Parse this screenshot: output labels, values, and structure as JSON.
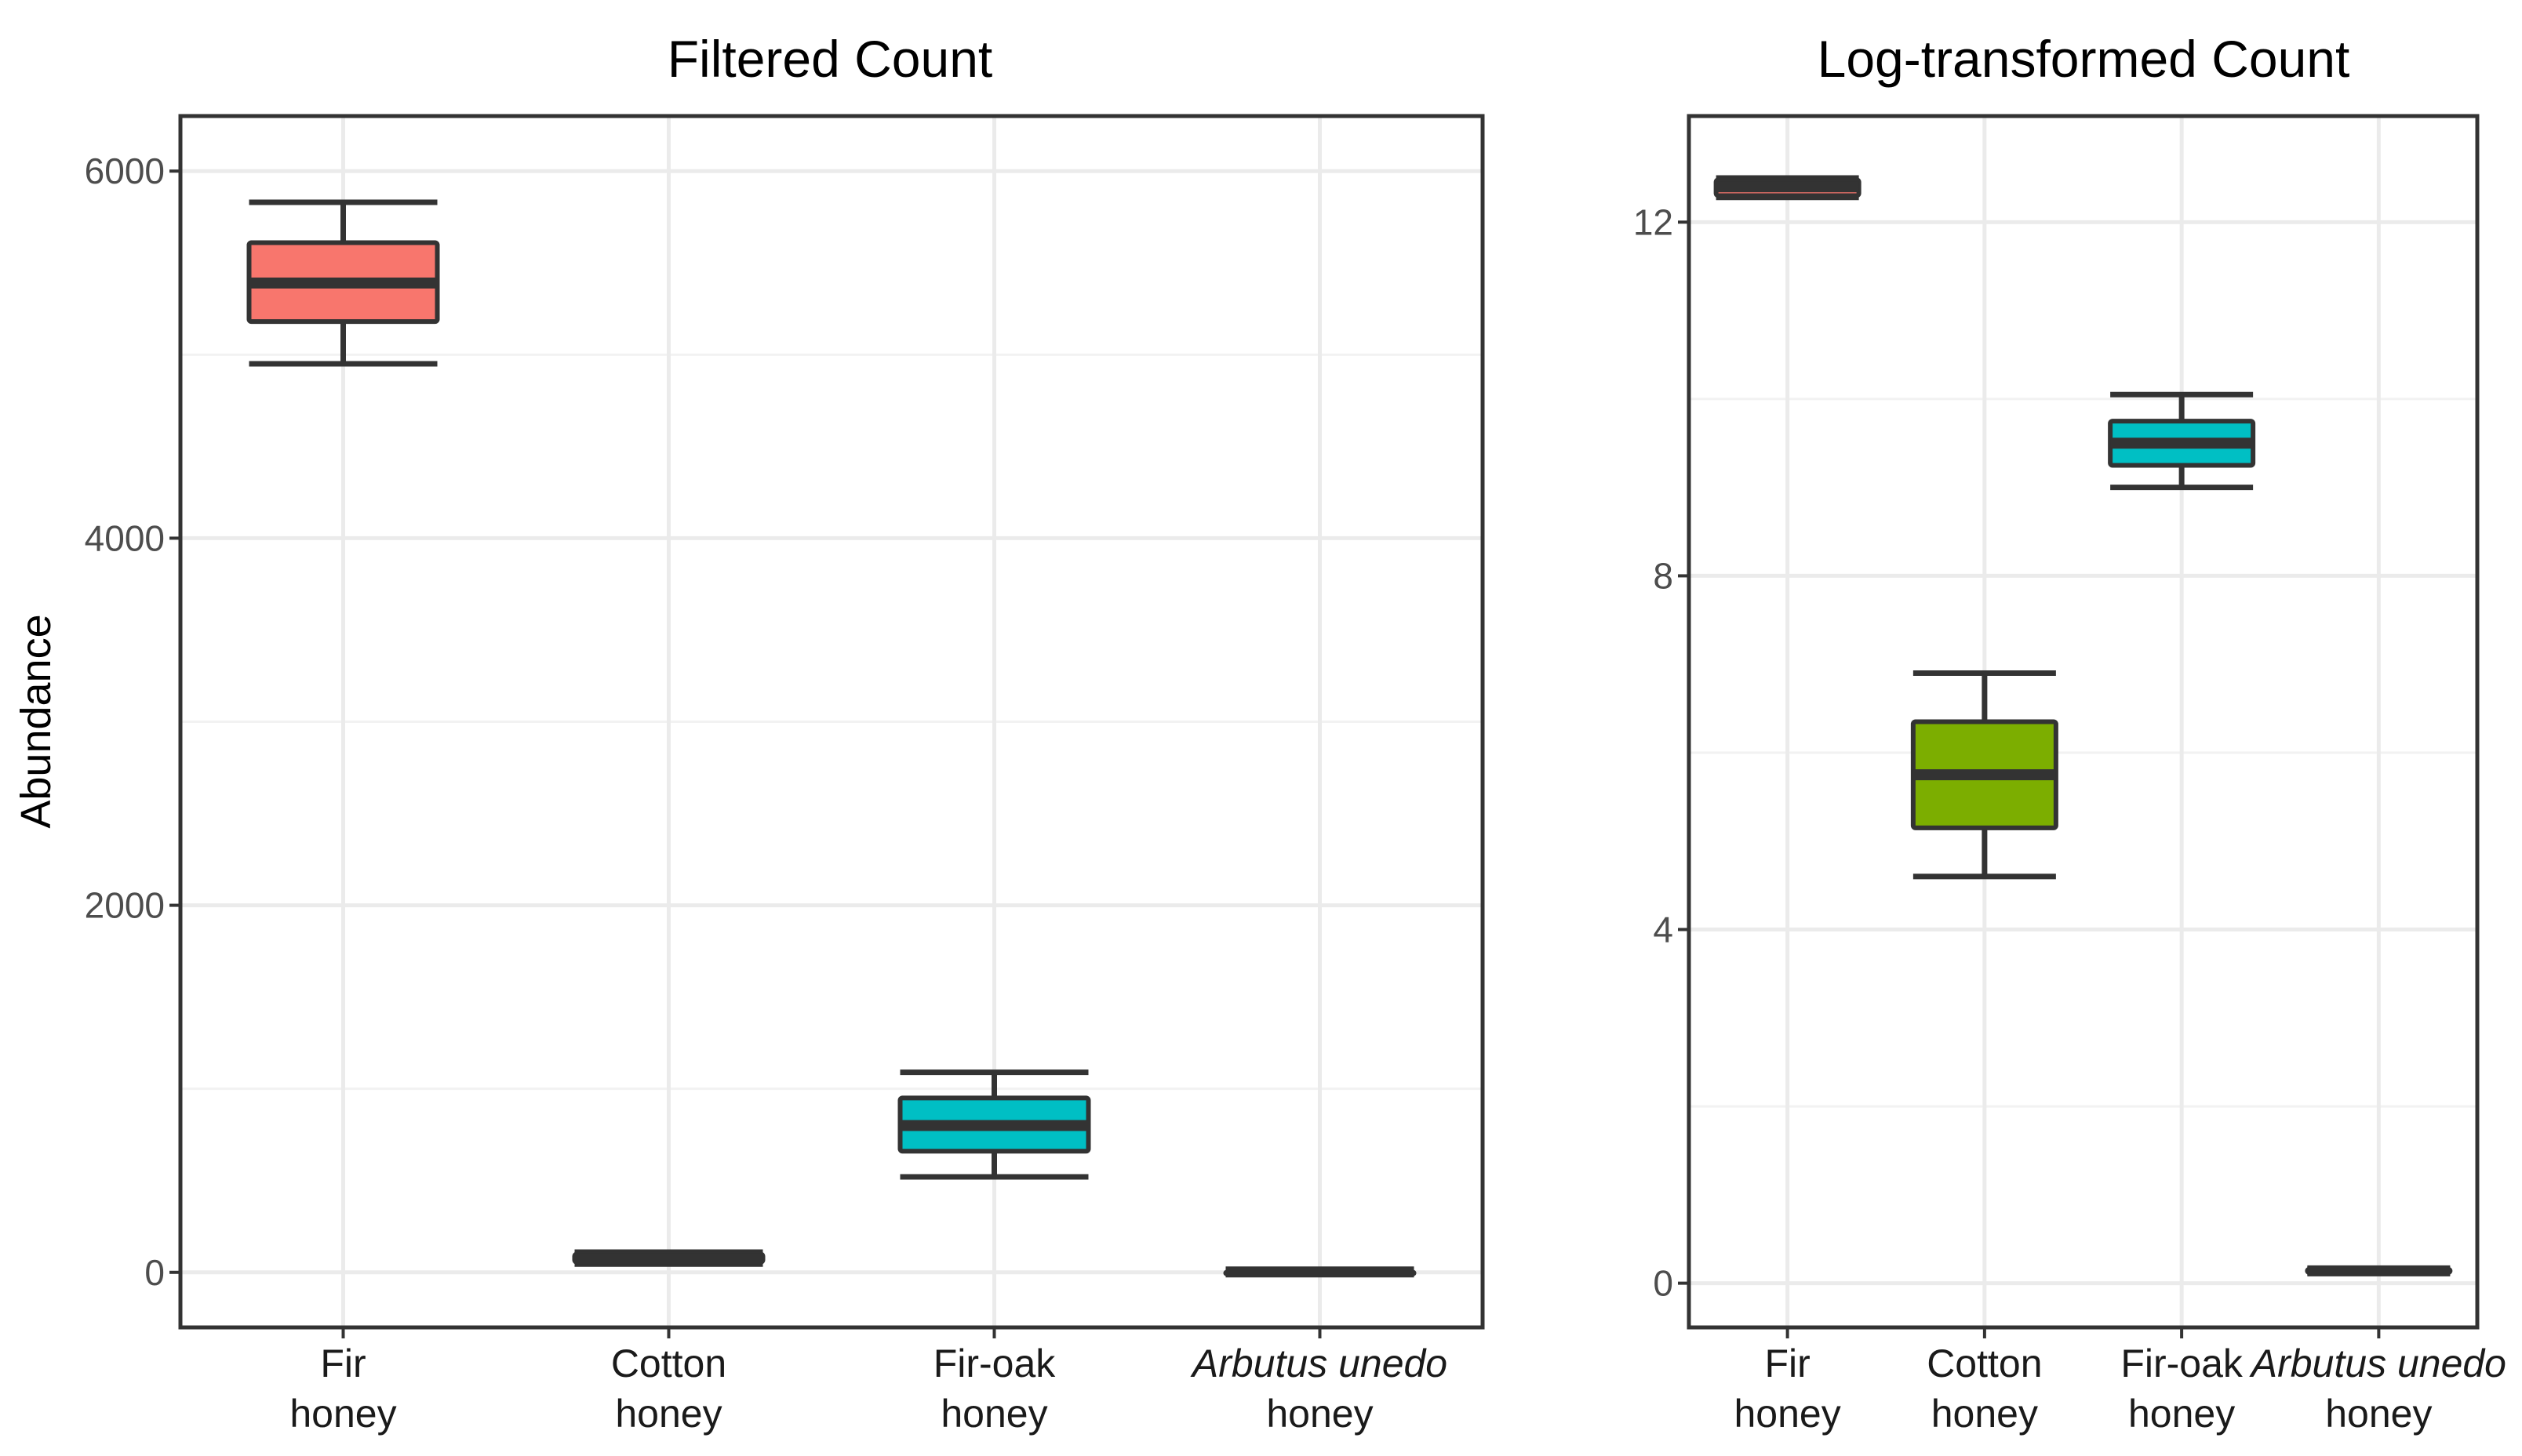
{
  "chart_data": [
    {
      "type": "box",
      "title": "Filtered Count",
      "xlabel": "",
      "ylabel": "Abundance",
      "ylim": [
        -300,
        6300
      ],
      "yticks": [
        0,
        2000,
        4000,
        6000
      ],
      "ytick_labels": [
        "0",
        "2000",
        "4000",
        "6000"
      ],
      "grid": true,
      "categories": [
        {
          "line1": "Fir",
          "line1_italic": false,
          "line2": "honey"
        },
        {
          "line1": "Cotton",
          "line1_italic": false,
          "line2": "honey"
        },
        {
          "line1": "Fir-oak",
          "line1_italic": false,
          "line2": "honey"
        },
        {
          "line1": "Arbutus unedo",
          "line1_italic": true,
          "line2": "honey"
        }
      ],
      "boxes": [
        {
          "min": 4950,
          "q1": 5180,
          "median": 5390,
          "q3": 5610,
          "max": 5830,
          "color": "#F8766D"
        },
        {
          "min": 45,
          "q1": 55,
          "median": 75,
          "q3": 100,
          "max": 110,
          "color": "#7CAE00"
        },
        {
          "min": 520,
          "q1": 660,
          "median": 800,
          "q3": 950,
          "max": 1090,
          "color": "#00BFC4"
        },
        {
          "min": 0,
          "q1": 1,
          "median": 2,
          "q3": 3,
          "max": 4,
          "color": "#C77CFF"
        }
      ]
    },
    {
      "type": "box",
      "title": "Log-transformed Count",
      "xlabel": "",
      "ylabel": "",
      "ylim": [
        -0.5,
        13.2
      ],
      "yticks": [
        0,
        4,
        8,
        12
      ],
      "ytick_labels": [
        "0",
        "4",
        "8",
        "12"
      ],
      "grid": true,
      "categories": [
        {
          "line1": "Fir",
          "line1_italic": false,
          "line2": "honey"
        },
        {
          "line1": "Cotton",
          "line1_italic": false,
          "line2": "honey"
        },
        {
          "line1": "Fir-oak",
          "line1_italic": false,
          "line2": "honey"
        },
        {
          "line1": "Arbutus unedo",
          "line1_italic": true,
          "line2": "honey"
        }
      ],
      "boxes": [
        {
          "min": 12.28,
          "q1": 12.3,
          "median": 12.4,
          "q3": 12.48,
          "max": 12.5,
          "color": "#F8766D"
        },
        {
          "min": 4.6,
          "q1": 5.15,
          "median": 5.75,
          "q3": 6.35,
          "max": 6.9,
          "color": "#7CAE00"
        },
        {
          "min": 9.0,
          "q1": 9.25,
          "median": 9.5,
          "q3": 9.75,
          "max": 10.05,
          "color": "#00BFC4"
        },
        {
          "min": 0.12,
          "q1": 0.12,
          "median": 0.14,
          "q3": 0.16,
          "max": 0.16,
          "color": "#C77CFF"
        }
      ]
    }
  ]
}
